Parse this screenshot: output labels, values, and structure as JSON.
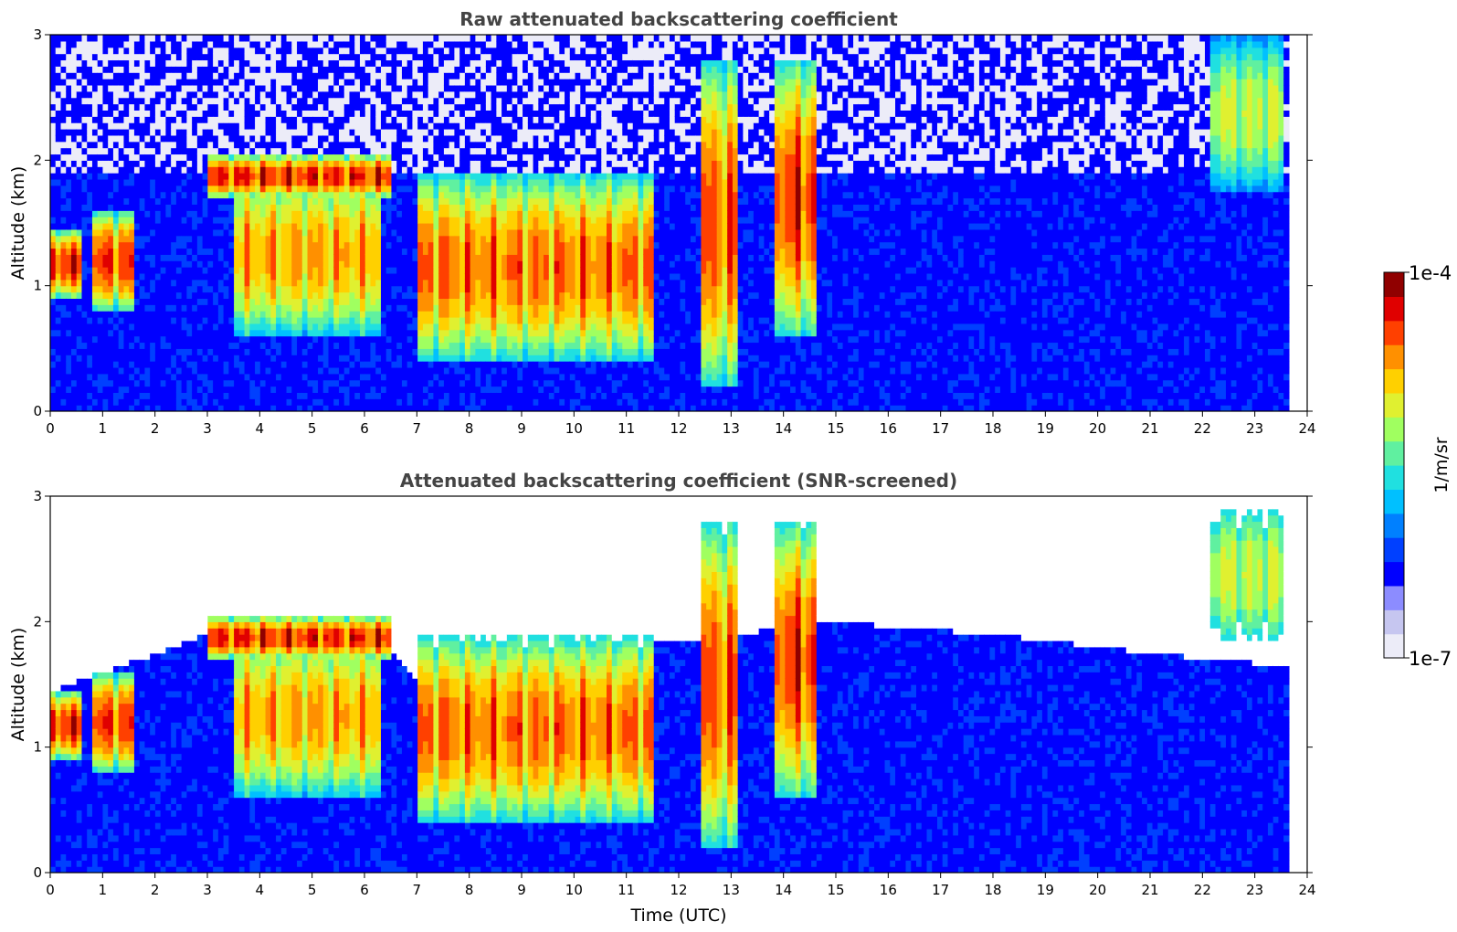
{
  "colormap": [
    "#ececf8",
    "#c6c6f0",
    "#8c8cff",
    "#0000ff",
    "#0040ff",
    "#0080ff",
    "#00c0ff",
    "#20e0e0",
    "#60f0a0",
    "#a0ff60",
    "#e0f030",
    "#ffd000",
    "#ff9000",
    "#ff4000",
    "#e00000",
    "#900000"
  ],
  "masked_color": "#ffffff",
  "chart_data": [
    {
      "type": "heatmap",
      "title": "Raw attenuated backscattering coefficient",
      "xlabel": "",
      "ylabel": "Altitude (km)",
      "xlim": [
        0,
        24
      ],
      "ylim": [
        0,
        3
      ],
      "xticks": [
        "0",
        "1",
        "2",
        "3",
        "4",
        "5",
        "6",
        "7",
        "8",
        "9",
        "10",
        "11",
        "12",
        "13",
        "14",
        "15",
        "16",
        "17",
        "18",
        "19",
        "20",
        "21",
        "22",
        "23",
        "24"
      ],
      "yticks": [
        "0",
        "1",
        "2",
        "3"
      ],
      "data_end_time": 23.65,
      "noise_floor_altitude_km": 1.9,
      "cloud_features": [
        {
          "t0": 0.0,
          "t1": 0.6,
          "base": 0.9,
          "top": 1.45,
          "peak": 0.0001
        },
        {
          "t0": 0.85,
          "t1": 1.65,
          "base": 0.8,
          "top": 1.6,
          "peak": 8e-05
        },
        {
          "t0": 3.0,
          "t1": 6.5,
          "base": 1.7,
          "top": 2.05,
          "peak": 0.0001
        },
        {
          "t0": 3.5,
          "t1": 6.3,
          "base": 0.6,
          "top": 1.9,
          "peak": 4e-05
        },
        {
          "t0": 7.0,
          "t1": 11.5,
          "base": 0.4,
          "top": 1.9,
          "peak": 6e-05
        },
        {
          "t0": 12.4,
          "t1": 13.1,
          "base": 0.2,
          "top": 2.8,
          "peak": 7e-05
        },
        {
          "t0": 13.8,
          "t1": 14.6,
          "base": 0.6,
          "top": 2.8,
          "peak": 9e-05
        },
        {
          "t0": 22.1,
          "t1": 23.5,
          "base": 1.75,
          "top": 3.0,
          "peak": 1.5e-05
        }
      ]
    },
    {
      "type": "heatmap",
      "title": "Attenuated backscattering coefficient (SNR-screened)",
      "xlabel": "Time (UTC)",
      "ylabel": "Altitude (km)",
      "xlim": [
        0,
        24
      ],
      "ylim": [
        0,
        3
      ],
      "xticks": [
        "0",
        "1",
        "2",
        "3",
        "4",
        "5",
        "6",
        "7",
        "8",
        "9",
        "10",
        "11",
        "12",
        "13",
        "14",
        "15",
        "16",
        "17",
        "18",
        "19",
        "20",
        "21",
        "22",
        "23",
        "24"
      ],
      "yticks": [
        "0",
        "1",
        "2",
        "3"
      ],
      "data_end_time": 23.65,
      "screened_above_altitude_km": [
        {
          "t": 0.0,
          "alt": 1.45
        },
        {
          "t": 1.7,
          "alt": 1.7
        },
        {
          "t": 3.0,
          "alt": 1.9
        },
        {
          "t": 6.0,
          "alt": 2.05
        },
        {
          "t": 7.0,
          "alt": 1.55
        },
        {
          "t": 10.0,
          "alt": 1.75
        },
        {
          "t": 13.0,
          "alt": 1.9
        },
        {
          "t": 15.0,
          "alt": 2.0
        },
        {
          "t": 18.0,
          "alt": 1.9
        },
        {
          "t": 21.0,
          "alt": 1.75
        },
        {
          "t": 23.65,
          "alt": 1.65
        }
      ]
    }
  ],
  "colorbar": {
    "label": "1/m/sr",
    "min_label": "1e-7",
    "max_label": "1e-4",
    "scale": "log",
    "range": [
      1e-07,
      0.0001
    ]
  }
}
